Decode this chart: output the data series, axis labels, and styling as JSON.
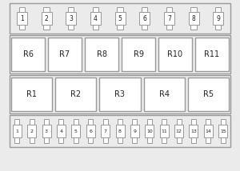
{
  "bg_color": "#ebebeb",
  "box_color": "#ffffff",
  "border_color": "#999999",
  "text_color": "#222222",
  "top_fuses_labels": [
    "1",
    "2",
    "3",
    "4",
    "5",
    "6",
    "7",
    "8",
    "9"
  ],
  "bottom_fuses_labels": [
    "1",
    "2",
    "3",
    "4",
    "5",
    "6",
    "7",
    "8",
    "9",
    "10",
    "11",
    "12",
    "13",
    "14",
    "15"
  ],
  "relay_row1": [
    "R6",
    "R7",
    "R8",
    "R9",
    "R10",
    "R11"
  ],
  "relay_row2": [
    "R1",
    "R2",
    "R3",
    "R4",
    "R5"
  ],
  "fig_width": 3.0,
  "fig_height": 2.14,
  "dpi": 100
}
